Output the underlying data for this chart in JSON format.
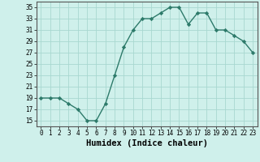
{
  "x": [
    0,
    1,
    2,
    3,
    4,
    5,
    6,
    7,
    8,
    9,
    10,
    11,
    12,
    13,
    14,
    15,
    16,
    17,
    18,
    19,
    20,
    21,
    22,
    23
  ],
  "y": [
    19,
    19,
    19,
    18,
    17,
    15,
    15,
    18,
    23,
    28,
    31,
    33,
    33,
    34,
    35,
    35,
    32,
    34,
    34,
    31,
    31,
    30,
    29,
    27
  ],
  "line_color": "#2d7a6a",
  "marker": "D",
  "marker_size": 2.2,
  "bg_color": "#cff0eb",
  "grid_color": "#a8d8d0",
  "xlabel": "Humidex (Indice chaleur)",
  "xlabel_fontsize": 7.5,
  "xlabel_weight": "bold",
  "ylabel_ticks": [
    15,
    17,
    19,
    21,
    23,
    25,
    27,
    29,
    31,
    33,
    35
  ],
  "ylim": [
    14,
    36
  ],
  "xlim": [
    -0.5,
    23.5
  ],
  "xtick_labels": [
    "0",
    "1",
    "2",
    "3",
    "4",
    "5",
    "6",
    "7",
    "8",
    "9",
    "10",
    "11",
    "12",
    "13",
    "14",
    "15",
    "16",
    "17",
    "18",
    "19",
    "20",
    "21",
    "22",
    "23"
  ],
  "tick_fontsize": 5.5
}
